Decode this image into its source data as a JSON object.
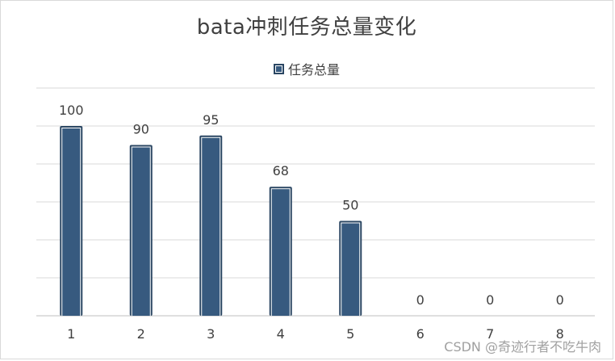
{
  "chart_data": {
    "type": "bar",
    "title": "bata冲刺任务总量变化",
    "xlabel": "",
    "ylabel": "",
    "categories": [
      "1",
      "2",
      "3",
      "4",
      "5",
      "6",
      "7",
      "8"
    ],
    "series": [
      {
        "name": "任务总量",
        "values": [
          100,
          90,
          95,
          68,
          50,
          0,
          0,
          0
        ],
        "color": "#375a7f"
      }
    ],
    "ylim": [
      0,
      120
    ],
    "grid": true,
    "legend_position": "top-center",
    "data_labels": true
  },
  "watermark": "CSDN @奇迹行者不吃牛肉"
}
